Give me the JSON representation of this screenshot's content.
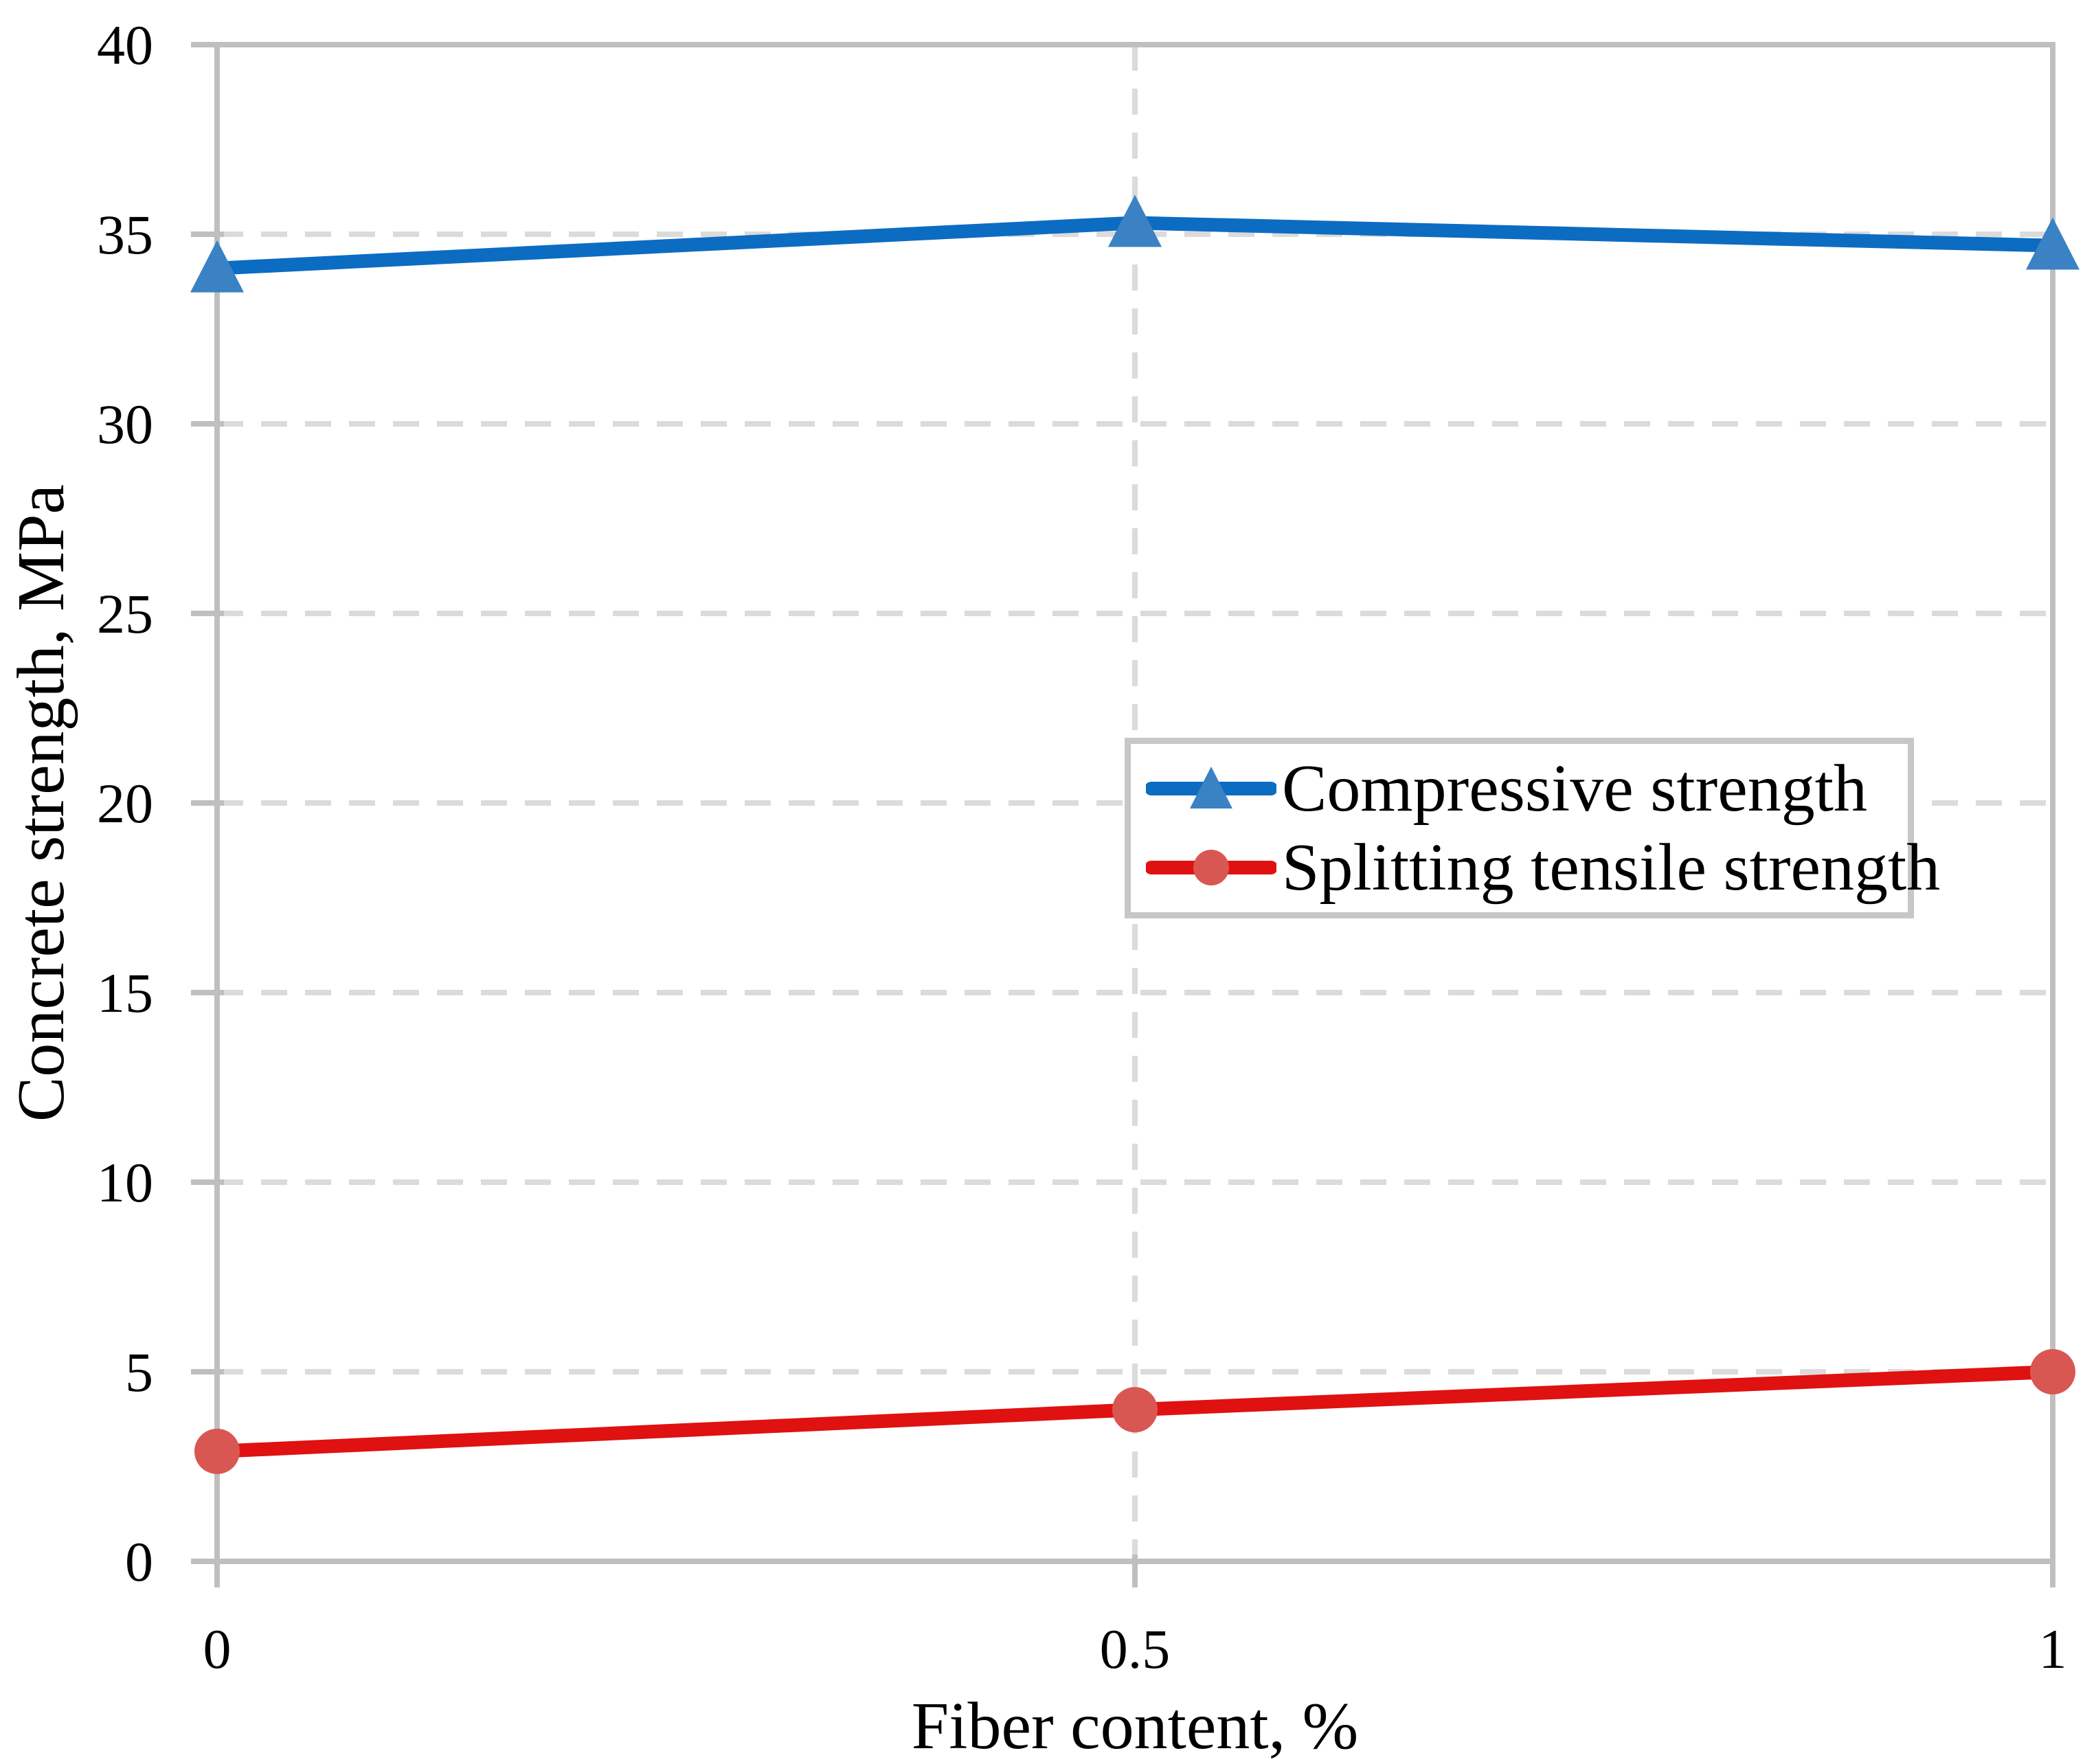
{
  "chart_data": {
    "type": "line",
    "title": "",
    "xlabel": "Fiber content, %",
    "ylabel": "Concrete strength, MPa",
    "x": [
      0,
      0.5,
      1
    ],
    "x_tick_labels": [
      "0",
      "0.5",
      "1"
    ],
    "xlim": [
      0,
      1
    ],
    "ylim": [
      0,
      40
    ],
    "y_ticks": [
      0,
      5,
      10,
      15,
      20,
      25,
      30,
      35,
      40
    ],
    "grid": "dashed light-gray horizontal lines every 5 MPa and dashed vertical line at each inner x tick; solid gray border on all four sides",
    "legend_position": "inset center-right",
    "series": [
      {
        "name": "Compressive strength",
        "values": [
          34.1,
          35.3,
          34.7
        ],
        "line_color": "#0c6cc2",
        "marker": "triangle",
        "marker_color": "#3a82c4"
      },
      {
        "name": "Splitting tensile strength",
        "values": [
          2.9,
          4.0,
          5.0
        ],
        "line_color": "#e01111",
        "marker": "circle",
        "marker_color": "#d95752"
      }
    ]
  },
  "colors": {
    "background": "#ffffff",
    "gridline": "#dbdbdb",
    "axis": "#bfbfbf",
    "legend_border": "#c7c7c7",
    "text": "#000000"
  }
}
